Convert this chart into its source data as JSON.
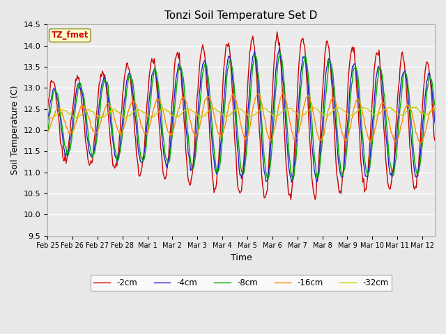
{
  "title": "Tonzi Soil Temperature Set D",
  "xlabel": "Time",
  "ylabel": "Soil Temperature (C)",
  "ylim": [
    9.5,
    14.5
  ],
  "xlim": [
    0,
    15.5
  ],
  "legend_label": "TZ_fmet",
  "series_labels": [
    "-2cm",
    "-4cm",
    "-8cm",
    "-16cm",
    "-32cm"
  ],
  "series_colors": [
    "#cc0000",
    "#2222cc",
    "#00aa00",
    "#ff8800",
    "#cccc00"
  ],
  "bg_color": "#e8e8e8",
  "plot_bg_color": "#e8e8e8",
  "x_tick_positions": [
    0,
    1,
    2,
    3,
    4,
    5,
    6,
    7,
    8,
    9,
    10,
    11,
    12,
    13,
    14,
    15
  ],
  "x_tick_labels": [
    "Feb 25",
    "Feb 26",
    "Feb 27",
    "Feb 28",
    "Mar 1",
    "Mar 2",
    "Mar 3",
    "Mar 4",
    "Mar 5",
    "Mar 6",
    "Mar 7",
    "Mar 8",
    "Mar 9",
    "Mar 10",
    "Mar 11",
    "Mar 12"
  ],
  "y_ticks": [
    9.5,
    10.0,
    10.5,
    11.0,
    11.5,
    12.0,
    12.5,
    13.0,
    13.5,
    14.0,
    14.5
  ],
  "n_points": 480,
  "figsize": [
    6.4,
    4.8
  ],
  "dpi": 100
}
